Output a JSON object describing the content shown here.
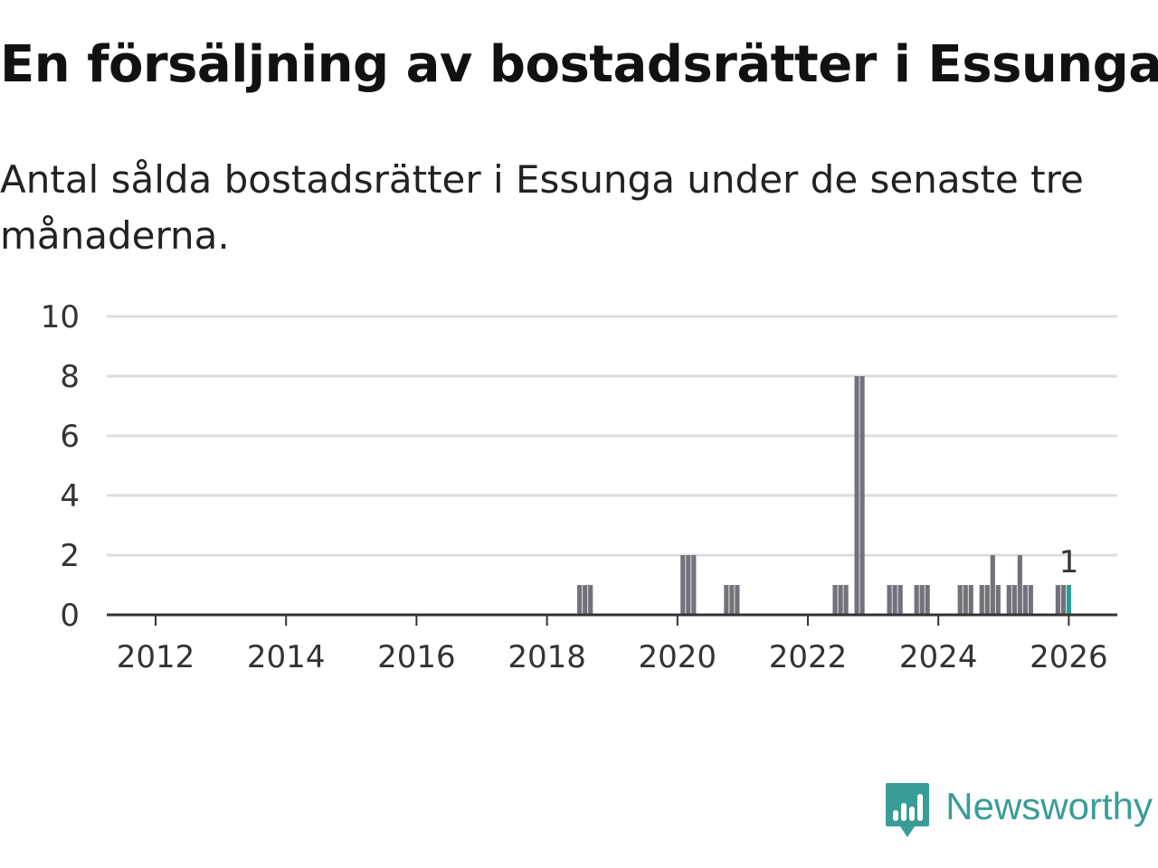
{
  "title": "En försäljning av bostadsrätter i Essunga",
  "subtitle": "Antal sålda bostadsrätter i Essunga under de senaste tre månaderna.",
  "brand": {
    "name": "Newsworthy",
    "icon": "newsworthy-logo-icon",
    "color": "#3a9c96"
  },
  "colors": {
    "bar": "#72727a",
    "highlight": "#2d9c96",
    "grid": "#dddddd",
    "axis": "#333333"
  },
  "chart_data": {
    "type": "bar",
    "x_unit": "month",
    "ylim": [
      0,
      10
    ],
    "y_ticks": [
      "0",
      "2",
      "4",
      "6",
      "8",
      "10"
    ],
    "x_ticks": [
      "2012",
      "2014",
      "2016",
      "2018",
      "2020",
      "2022",
      "2024",
      "2026"
    ],
    "x_range": [
      "2011-04",
      "2026-10"
    ],
    "grid": true,
    "values_note": "",
    "points": [
      {
        "x": "2018-07",
        "y": 1
      },
      {
        "x": "2018-08",
        "y": 1
      },
      {
        "x": "2018-09",
        "y": 1
      },
      {
        "x": "2020-02",
        "y": 2
      },
      {
        "x": "2020-03",
        "y": 2
      },
      {
        "x": "2020-04",
        "y": 2
      },
      {
        "x": "2020-10",
        "y": 1
      },
      {
        "x": "2020-11",
        "y": 1
      },
      {
        "x": "2020-12",
        "y": 1
      },
      {
        "x": "2022-06",
        "y": 1
      },
      {
        "x": "2022-07",
        "y": 1
      },
      {
        "x": "2022-08",
        "y": 1
      },
      {
        "x": "2022-10",
        "y": 8
      },
      {
        "x": "2022-11",
        "y": 8
      },
      {
        "x": "2023-04",
        "y": 1
      },
      {
        "x": "2023-05",
        "y": 1
      },
      {
        "x": "2023-06",
        "y": 1
      },
      {
        "x": "2023-09",
        "y": 1
      },
      {
        "x": "2023-10",
        "y": 1
      },
      {
        "x": "2023-11",
        "y": 1
      },
      {
        "x": "2024-05",
        "y": 1
      },
      {
        "x": "2024-06",
        "y": 1
      },
      {
        "x": "2024-07",
        "y": 1
      },
      {
        "x": "2024-09",
        "y": 1
      },
      {
        "x": "2024-10",
        "y": 1
      },
      {
        "x": "2024-11",
        "y": 2
      },
      {
        "x": "2024-12",
        "y": 1
      },
      {
        "x": "2025-02",
        "y": 1
      },
      {
        "x": "2025-03",
        "y": 1
      },
      {
        "x": "2025-04",
        "y": 2
      },
      {
        "x": "2025-05",
        "y": 1
      },
      {
        "x": "2025-06",
        "y": 1
      },
      {
        "x": "2025-11",
        "y": 1
      },
      {
        "x": "2025-12",
        "y": 1
      },
      {
        "x": "2026-01",
        "y": 1,
        "highlight": true,
        "label": "1"
      }
    ]
  }
}
